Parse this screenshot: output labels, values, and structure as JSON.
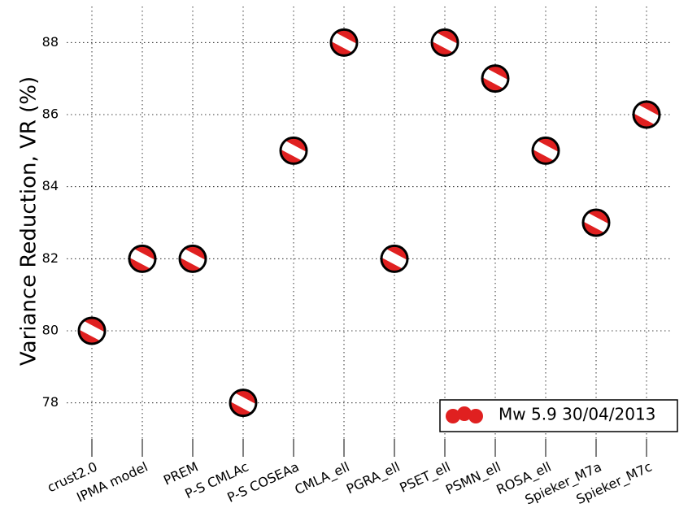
{
  "chart_data": {
    "type": "scatter",
    "y_label": "Variance Reduction, VR (%)",
    "categories": [
      "crust2.0",
      "IPMA model",
      "PREM",
      "P-S CMLAc",
      "P-S COSEAa",
      "CMLA_ell",
      "PGRA_ell",
      "PSET_ell",
      "PSMN_ell",
      "ROSA_ell",
      "Spieker_M7a",
      "Spieker_M7c"
    ],
    "series": [
      {
        "name": "Mw 5.9 30/04/2013",
        "color": "#e02020",
        "values": [
          80,
          82,
          82,
          78,
          85,
          88,
          82,
          88,
          87,
          85,
          83,
          86
        ]
      }
    ],
    "ylim": [
      77,
      89
    ],
    "yticks": [
      78,
      80,
      82,
      84,
      86,
      88
    ],
    "grid": true,
    "legend": "lower right"
  }
}
